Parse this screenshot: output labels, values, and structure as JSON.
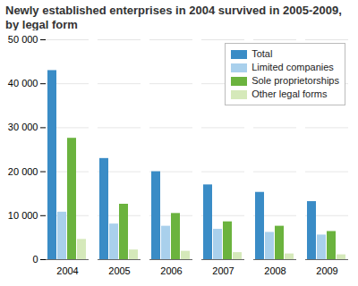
{
  "chart_data": {
    "type": "bar",
    "title": "Newly established enterprises in 2004 survived in 2005-2009, by legal form",
    "categories": [
      "2004",
      "2005",
      "2006",
      "2007",
      "2008",
      "2009"
    ],
    "series": [
      {
        "name": "Total",
        "color": "#3a8cc6",
        "values": [
          43000,
          23000,
          20000,
          17000,
          15300,
          13200
        ]
      },
      {
        "name": "Limited companies",
        "color": "#a9d0ec",
        "values": [
          10800,
          8100,
          7600,
          6900,
          6200,
          5600
        ]
      },
      {
        "name": "Sole proprietorships",
        "color": "#6bb33e",
        "values": [
          27600,
          12600,
          10500,
          8600,
          7600,
          6400
        ]
      },
      {
        "name": "Other legal forms",
        "color": "#d5e9ba",
        "values": [
          4600,
          2200,
          1900,
          1600,
          1300,
          1100
        ]
      }
    ],
    "ylim": [
      0,
      50000
    ],
    "yticks": [
      0,
      {
        "value": 10000,
        "label": "10 000"
      },
      {
        "value": 20000,
        "label": "20 000"
      },
      {
        "value": 30000,
        "label": "30 000"
      },
      {
        "value": 40000,
        "label": "40 000"
      },
      {
        "value": 50000,
        "label": "50 000"
      }
    ],
    "grid": true,
    "legend": "top-right"
  }
}
